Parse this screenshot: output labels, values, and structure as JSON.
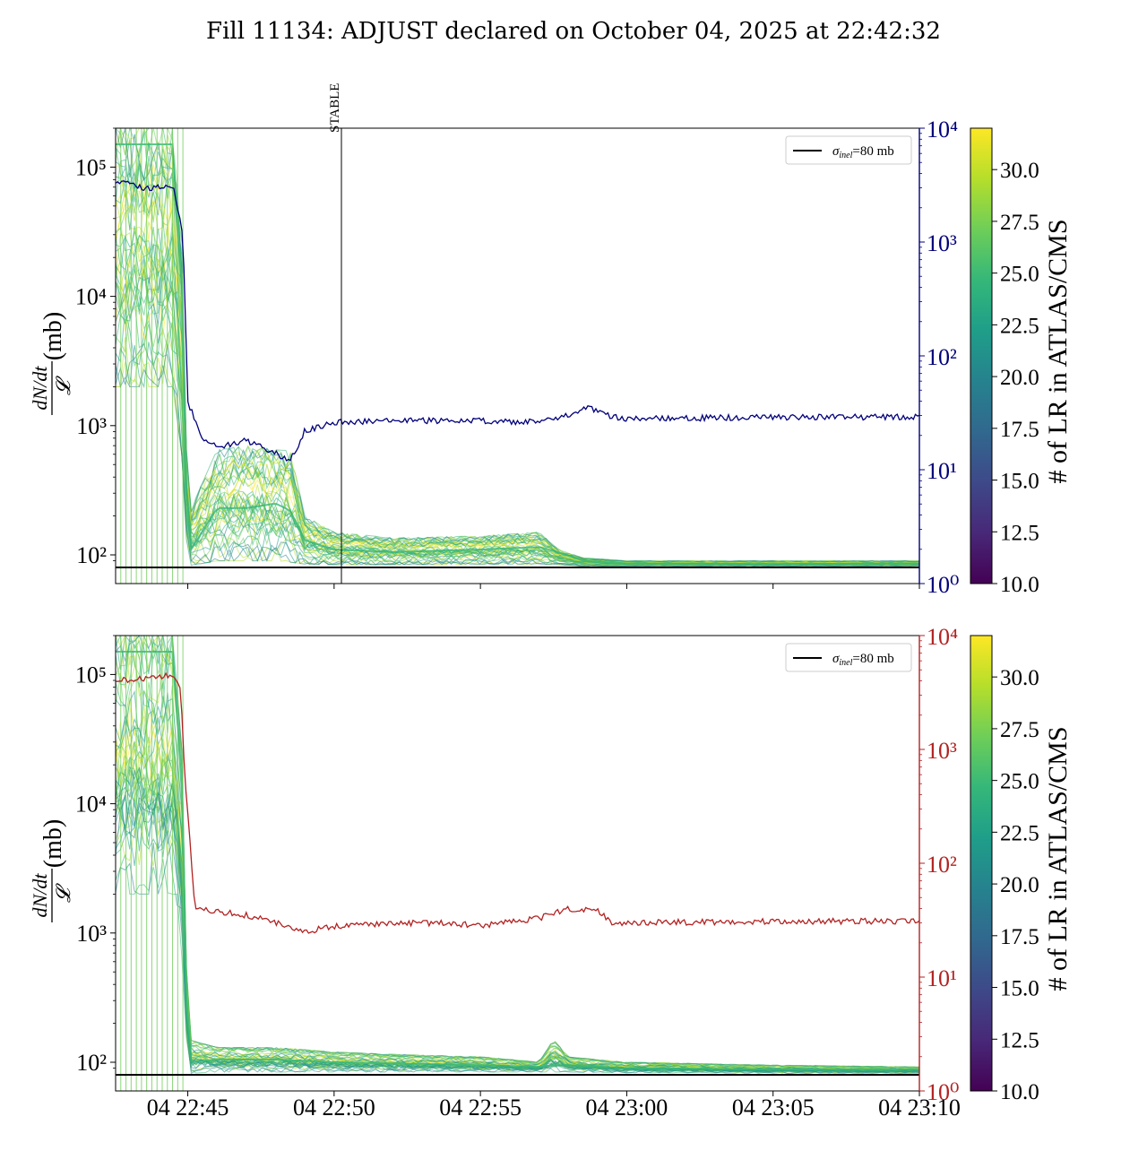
{
  "figure": {
    "title": "Fill 11134: ADJUST declared on October 04, 2025 at 22:42:32"
  },
  "colors": {
    "top_ratio_line": "#00007a",
    "bottom_ratio_line": "#b22222",
    "top_right_axis": "#00007a",
    "bottom_right_axis": "#b22222",
    "sigma_line": "#000000",
    "viridis": [
      "#440154",
      "#482878",
      "#3e4989",
      "#31688e",
      "#26828e",
      "#1f9e89",
      "#35b779",
      "#6ece58",
      "#b5de2b",
      "#fde725"
    ]
  },
  "chart_data": [
    {
      "type": "line",
      "panel": "top",
      "title": "",
      "xlabel": "",
      "ylabel": "dN/dt / 𝓛 (mb)",
      "y_scale": "log",
      "ylim": [
        60,
        200000
      ],
      "y_ticks": [
        "10²",
        "10³",
        "10⁴",
        "10⁵"
      ],
      "right_axis": {
        "scale": "log",
        "ylim": [
          1,
          10000
        ],
        "ticks": [
          "10⁰",
          "10¹",
          "10²",
          "10³",
          "10⁴"
        ]
      },
      "xlim": [
        "22:42:32",
        "23:10:00"
      ],
      "vline": {
        "x": "22:50:15",
        "label": "STABLE"
      },
      "legend": {
        "placement": "top-right",
        "entries": [
          "σinel=80 mb"
        ]
      },
      "sigma_inel_mb": 80,
      "band_series": {
        "name": "dN/dt / 𝓛 per bunch",
        "x": [
          "22:42:32",
          "22:44:30",
          "22:44:50",
          "22:45:00",
          "22:46:00",
          "22:47:00",
          "22:48:00",
          "22:48:30",
          "22:49:00",
          "22:50:00",
          "22:52:00",
          "22:55:00",
          "22:57:00",
          "22:57:40",
          "22:58:30",
          "23:00:00",
          "23:05:00",
          "23:10:00"
        ],
        "median": [
          150000,
          150000,
          9000,
          100,
          230,
          230,
          250,
          220,
          130,
          110,
          105,
          110,
          115,
          105,
          90,
          86,
          85,
          86
        ],
        "upper": [
          200000,
          200000,
          20000,
          200,
          650,
          700,
          650,
          640,
          200,
          150,
          135,
          140,
          150,
          110,
          95,
          90,
          90,
          90
        ],
        "lower": [
          2000,
          2000,
          500,
          82,
          90,
          90,
          90,
          88,
          85,
          84,
          84,
          85,
          85,
          84,
          82,
          82,
          82,
          82
        ]
      },
      "ratio_series": {
        "name": "right axis",
        "x": [
          "22:42:32",
          "22:43:30",
          "22:44:30",
          "22:44:50",
          "22:45:00",
          "22:45:30",
          "22:46:00",
          "22:47:00",
          "22:48:00",
          "22:48:30",
          "22:49:00",
          "22:50:00",
          "22:52:00",
          "22:55:00",
          "22:56:30",
          "22:58:00",
          "22:58:40",
          "22:59:20",
          "23:00:00",
          "23:05:00",
          "23:10:00"
        ],
        "y": [
          3500,
          3000,
          3000,
          1200,
          40,
          18,
          16,
          18,
          14,
          12,
          22,
          26,
          27,
          27,
          26,
          30,
          35,
          30,
          28,
          29,
          29
        ]
      }
    },
    {
      "type": "line",
      "panel": "bottom",
      "title": "",
      "xlabel": "",
      "ylabel": "dN/dt / 𝓛 (mb)",
      "y_scale": "log",
      "ylim": [
        60,
        200000
      ],
      "y_ticks": [
        "10²",
        "10³",
        "10⁴",
        "10⁵"
      ],
      "right_axis": {
        "scale": "log",
        "ylim": [
          1,
          10000
        ],
        "ticks": [
          "10⁰",
          "10¹",
          "10²",
          "10³",
          "10⁴"
        ]
      },
      "xlim": [
        "22:42:32",
        "23:10:00"
      ],
      "x_ticks": [
        {
          "x": "22:45:00",
          "label": "04 22:45"
        },
        {
          "x": "22:50:00",
          "label": "04 22:50"
        },
        {
          "x": "22:55:00",
          "label": "04 22:55"
        },
        {
          "x": "23:00:00",
          "label": "04 23:00"
        },
        {
          "x": "23:05:00",
          "label": "04 23:05"
        },
        {
          "x": "23:10:00",
          "label": "04 23:10"
        }
      ],
      "legend": {
        "placement": "top-right",
        "entries": [
          "σinel=80 mb"
        ]
      },
      "sigma_inel_mb": 80,
      "band_series": {
        "name": "dN/dt / 𝓛 per bunch",
        "x": [
          "22:42:32",
          "22:44:30",
          "22:44:50",
          "22:45:00",
          "22:46:00",
          "22:48:00",
          "22:50:00",
          "22:52:00",
          "22:55:00",
          "22:57:00",
          "22:57:30",
          "22:58:00",
          "23:00:00",
          "23:05:00",
          "23:10:00"
        ],
        "median": [
          150000,
          150000,
          9000,
          100,
          105,
          105,
          100,
          98,
          95,
          92,
          95,
          95,
          90,
          88,
          88
        ],
        "upper": [
          200000,
          200000,
          20000,
          150,
          130,
          130,
          120,
          115,
          110,
          100,
          150,
          110,
          100,
          95,
          92
        ],
        "lower": [
          2000,
          2000,
          500,
          82,
          84,
          84,
          84,
          84,
          84,
          84,
          84,
          84,
          83,
          82,
          82
        ]
      },
      "ratio_series": {
        "name": "right axis",
        "x": [
          "22:42:32",
          "22:43:30",
          "22:44:30",
          "22:44:45",
          "22:44:55",
          "22:45:15",
          "22:46:00",
          "22:47:00",
          "22:48:00",
          "22:49:00",
          "22:50:00",
          "22:52:00",
          "22:54:00",
          "22:55:00",
          "22:57:00",
          "22:58:00",
          "22:59:00",
          "22:59:30",
          "23:00:00",
          "23:05:00",
          "23:10:00"
        ],
        "y": [
          4000,
          4200,
          4500,
          3500,
          500,
          40,
          38,
          35,
          30,
          25,
          28,
          30,
          30,
          28,
          33,
          40,
          38,
          30,
          30,
          31,
          31
        ]
      }
    },
    {
      "type": "heatmap",
      "panel": "top-colorbar",
      "label": "# of LR in ATLAS/CMS",
      "range": [
        10,
        32
      ],
      "ticks": [
        "10.0",
        "12.5",
        "15.0",
        "17.5",
        "20.0",
        "22.5",
        "25.0",
        "27.5",
        "30.0"
      ]
    },
    {
      "type": "heatmap",
      "panel": "bottom-colorbar",
      "label": "# of LR in ATLAS/CMS",
      "range": [
        10,
        32
      ],
      "ticks": [
        "10.0",
        "12.5",
        "15.0",
        "17.5",
        "20.0",
        "22.5",
        "25.0",
        "27.5",
        "30.0"
      ]
    }
  ]
}
